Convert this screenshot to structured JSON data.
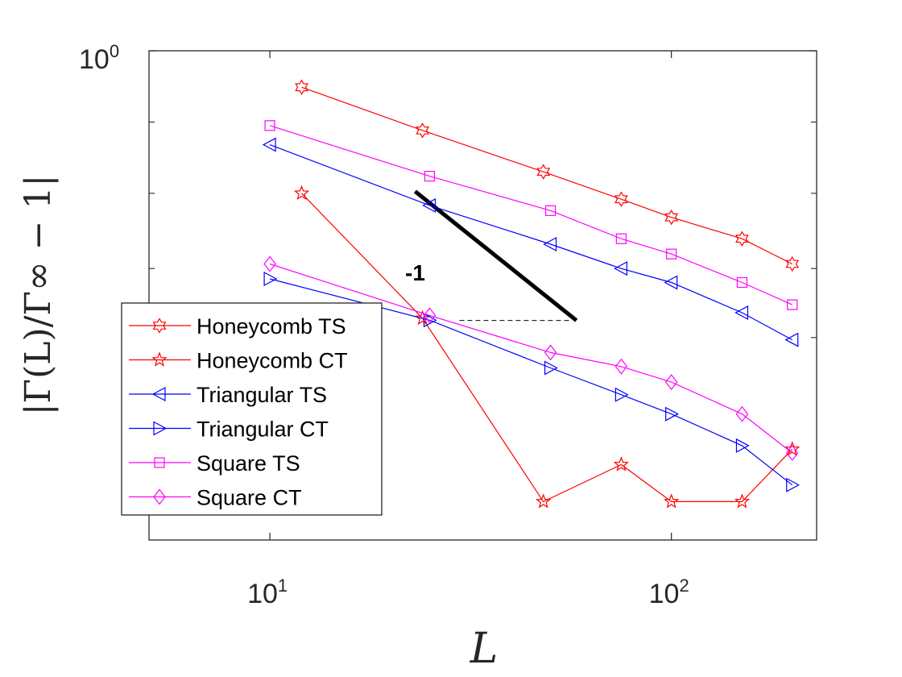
{
  "chart_data": {
    "type": "line",
    "xscale": "log",
    "yscale": "log",
    "xlim": [
      5,
      230
    ],
    "ylim": [
      0.03,
      1.0
    ],
    "xlabel": "L",
    "ylabel": "|Γ(L)/Γ∞ − 1|",
    "xticks": [
      {
        "value": 10,
        "base": "10",
        "exp": "1"
      },
      {
        "value": 100,
        "base": "10",
        "exp": "2"
      }
    ],
    "yticks_labeled": [
      {
        "value": 1.0,
        "base": "10",
        "exp": "0"
      }
    ],
    "yticks_minor": [
      0.6,
      0.36,
      0.21,
      0.128
    ],
    "slope_annotation": {
      "label": "-1",
      "slope": -1,
      "x_start": 23,
      "x_end": 58,
      "y_start": 0.365
    },
    "series": [
      {
        "name": "Honeycomb TS",
        "color": "#ff0000",
        "marker": "hexagram",
        "x": [
          12,
          24,
          48,
          75,
          100,
          150,
          200
        ],
        "y": [
          0.77,
          0.565,
          0.42,
          0.345,
          0.303,
          0.26,
          0.217
        ]
      },
      {
        "name": "Honeycomb CT",
        "color": "#ff0000",
        "marker": "pentagram",
        "x": [
          12,
          24,
          48,
          75,
          100,
          150,
          200
        ],
        "y": [
          0.36,
          0.147,
          0.0395,
          0.0515,
          0.0395,
          0.0395,
          0.0575
        ]
      },
      {
        "name": "Triangular TS",
        "color": "#0000ff",
        "marker": "triangle-left",
        "x": [
          10,
          25,
          50,
          75,
          100,
          150,
          200
        ],
        "y": [
          0.51,
          0.33,
          0.25,
          0.21,
          0.19,
          0.153,
          0.126
        ]
      },
      {
        "name": "Triangular CT",
        "color": "#0000ff",
        "marker": "triangle-right",
        "x": [
          10,
          25,
          50,
          75,
          100,
          150,
          200
        ],
        "y": [
          0.195,
          0.145,
          0.103,
          0.085,
          0.074,
          0.059,
          0.0445
        ]
      },
      {
        "name": "Square TS",
        "color": "#ff00ff",
        "marker": "square",
        "x": [
          10,
          25,
          50,
          75,
          100,
          150,
          200
        ],
        "y": [
          0.585,
          0.407,
          0.318,
          0.26,
          0.233,
          0.19,
          0.162
        ]
      },
      {
        "name": "Square CT",
        "color": "#ff00ff",
        "marker": "diamond",
        "x": [
          10,
          25,
          50,
          75,
          100,
          150,
          200
        ],
        "y": [
          0.217,
          0.15,
          0.115,
          0.104,
          0.093,
          0.074,
          0.056
        ]
      }
    ]
  }
}
